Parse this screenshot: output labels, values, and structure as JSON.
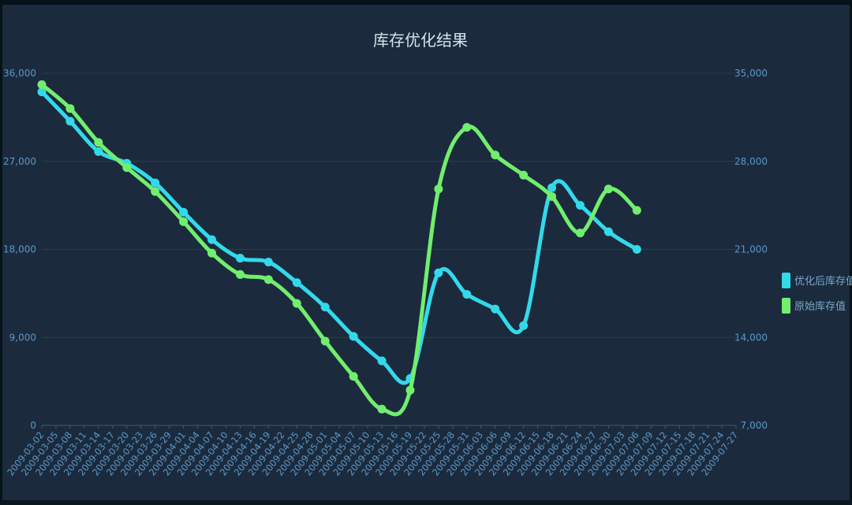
{
  "chart_data": {
    "type": "line",
    "title": "库存优化结果",
    "categories": [
      "2009-03-02",
      "2009-03-05",
      "2009-03-08",
      "2009-03-11",
      "2009-03-14",
      "2009-03-17",
      "2009-03-20",
      "2009-03-23",
      "2009-03-26",
      "2009-03-29",
      "2009-04-01",
      "2009-04-04",
      "2009-04-07",
      "2009-04-10",
      "2009-04-13",
      "2009-04-16",
      "2009-04-19",
      "2009-04-22",
      "2009-04-25",
      "2009-04-28",
      "2009-05-01",
      "2009-05-04",
      "2009-05-07",
      "2009-05-10",
      "2009-05-13",
      "2009-05-16",
      "2009-05-19",
      "2009-05-22",
      "2009-05-25",
      "2009-05-28",
      "2009-05-31",
      "2009-06-03",
      "2009-06-06",
      "2009-06-09",
      "2009-06-12",
      "2009-06-15",
      "2009-06-18",
      "2009-06-21",
      "2009-06-24",
      "2009-06-27",
      "2009-06-30",
      "2009-07-03",
      "2009-07-06",
      "2009-07-09",
      "2009-07-12",
      "2009-07-15",
      "2009-07-18",
      "2009-07-21",
      "2009-07-24",
      "2009-07-27"
    ],
    "y_left": {
      "ylim": [
        0,
        36000
      ],
      "ticks": [
        "0",
        "9,000",
        "18,000",
        "27,000",
        "36,000"
      ]
    },
    "y_right": {
      "ylim": [
        7000,
        35000
      ],
      "ticks": [
        "7,000",
        "14,000",
        "21,000",
        "28,000",
        "35,000"
      ]
    },
    "series": [
      {
        "name": "优化后库存值",
        "axis": "left",
        "color": "#33d9ea",
        "points": [
          {
            "x": "2009-03-02",
            "y": 34100
          },
          {
            "x": "2009-03-08",
            "y": 31100
          },
          {
            "x": "2009-03-14",
            "y": 28000
          },
          {
            "x": "2009-03-20",
            "y": 26800
          },
          {
            "x": "2009-03-26",
            "y": 24800
          },
          {
            "x": "2009-04-01",
            "y": 21800
          },
          {
            "x": "2009-04-07",
            "y": 19000
          },
          {
            "x": "2009-04-13",
            "y": 17100
          },
          {
            "x": "2009-04-19",
            "y": 16700
          },
          {
            "x": "2009-04-25",
            "y": 14600
          },
          {
            "x": "2009-05-01",
            "y": 12100
          },
          {
            "x": "2009-05-07",
            "y": 9100
          },
          {
            "x": "2009-05-13",
            "y": 6600
          },
          {
            "x": "2009-05-19",
            "y": 4800
          },
          {
            "x": "2009-05-25",
            "y": 15600
          },
          {
            "x": "2009-05-31",
            "y": 13400
          },
          {
            "x": "2009-06-06",
            "y": 11900
          },
          {
            "x": "2009-06-12",
            "y": 10200
          },
          {
            "x": "2009-06-18",
            "y": 24300
          },
          {
            "x": "2009-06-24",
            "y": 22500
          },
          {
            "x": "2009-06-30",
            "y": 19800
          },
          {
            "x": "2009-07-06",
            "y": 18000
          }
        ]
      },
      {
        "name": "原始库存值",
        "axis": "right",
        "color": "#72ee6e",
        "points": [
          {
            "x": "2009-03-02",
            "y": 34100
          },
          {
            "x": "2009-03-08",
            "y": 32200
          },
          {
            "x": "2009-03-14",
            "y": 29500
          },
          {
            "x": "2009-03-20",
            "y": 27500
          },
          {
            "x": "2009-03-26",
            "y": 25600
          },
          {
            "x": "2009-04-01",
            "y": 23200
          },
          {
            "x": "2009-04-07",
            "y": 20700
          },
          {
            "x": "2009-04-13",
            "y": 19000
          },
          {
            "x": "2009-04-19",
            "y": 18600
          },
          {
            "x": "2009-04-25",
            "y": 16700
          },
          {
            "x": "2009-05-01",
            "y": 13700
          },
          {
            "x": "2009-05-07",
            "y": 10900
          },
          {
            "x": "2009-05-13",
            "y": 8300
          },
          {
            "x": "2009-05-19",
            "y": 9800
          },
          {
            "x": "2009-05-25",
            "y": 25800
          },
          {
            "x": "2009-05-31",
            "y": 30700
          },
          {
            "x": "2009-06-06",
            "y": 28500
          },
          {
            "x": "2009-06-12",
            "y": 26900
          },
          {
            "x": "2009-06-18",
            "y": 25200
          },
          {
            "x": "2009-06-24",
            "y": 22300
          },
          {
            "x": "2009-06-30",
            "y": 25800
          },
          {
            "x": "2009-07-06",
            "y": 24100
          }
        ]
      }
    ],
    "legend": {
      "placement": "right"
    },
    "grid": true
  }
}
